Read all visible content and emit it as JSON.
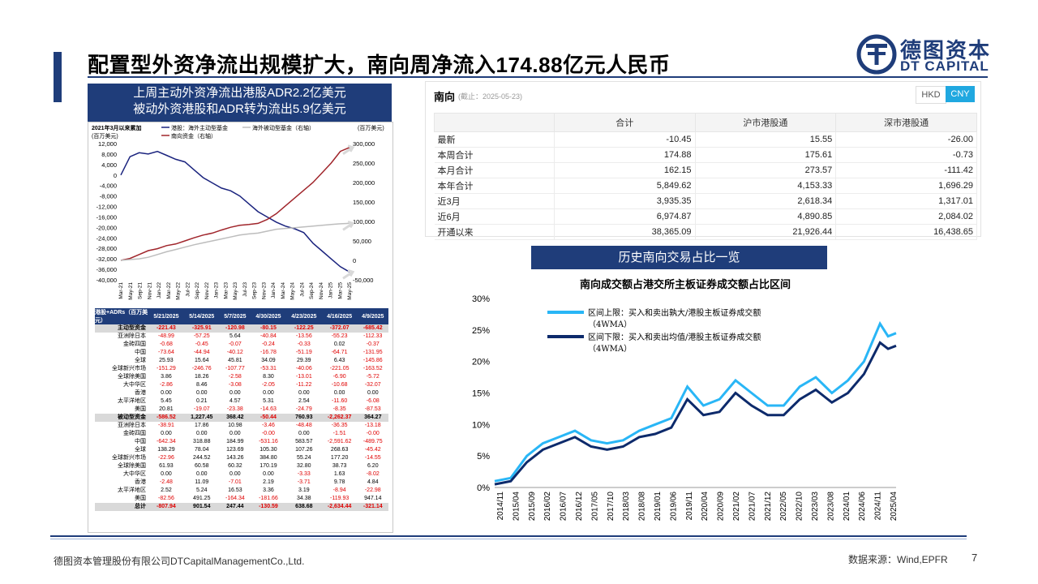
{
  "header": {
    "title": "配置型外资净流出规模扩大，南向周净流入174.88亿元人民币",
    "logo_cn": "德图资本",
    "logo_en": "DT CAPITAL"
  },
  "left_banner": {
    "line1": "上周主动外资净流出港股ADR2.2亿美元",
    "line2": "被动外资港股和ADR转为流出5.9亿美元"
  },
  "flow_chart": {
    "chart_data": {
      "type": "line",
      "title": "2021年3月以来累加",
      "left_unit": "(百万美元)",
      "right_unit": "(百万美元)",
      "y_left_ticks": [
        "12,000",
        "8,000",
        "4,000",
        "0",
        "-4,000",
        "-8,000",
        "-12,000",
        "-16,000",
        "-20,000",
        "-24,000",
        "-28,000",
        "-32,000",
        "-36,000",
        "-40,000"
      ],
      "y_right_ticks": [
        "300,000",
        "250,000",
        "200,000",
        "150,000",
        "100,000",
        "50,000",
        "0",
        "-50,000"
      ],
      "ylim_left": [
        -40000,
        12000
      ],
      "ylim_right": [
        -50000,
        300000
      ],
      "x_ticks": [
        "Mar-21",
        "May-21",
        "Sep-21",
        "Nov-21",
        "Jan-22",
        "Mar-22",
        "May-22",
        "Jul-22",
        "Sep-22",
        "Nov-22",
        "Jan-23",
        "Mar-23",
        "May-23",
        "Jul-23",
        "Sep-23",
        "Nov-23",
        "Jan-24",
        "Mar-24",
        "May-24",
        "Jul-24",
        "Sep-24",
        "Nov-24",
        "Jan-25",
        "Mar-25",
        "May-25"
      ],
      "series": [
        {
          "name": "港股：海外主动型基金",
          "color": "#1a237e",
          "axis": "left",
          "x": [
            0,
            4,
            8,
            12,
            16,
            20,
            24,
            28,
            32,
            36,
            40,
            44,
            48,
            52,
            56,
            60,
            64,
            68,
            72,
            76,
            80,
            84,
            88,
            92,
            96,
            100
          ],
          "values": [
            0,
            7000,
            8500,
            8000,
            9000,
            7500,
            6000,
            5000,
            2000,
            -1000,
            -3000,
            -5000,
            -6000,
            -8000,
            -11000,
            -14000,
            -16000,
            -18000,
            -19500,
            -20500,
            -22000,
            -26000,
            -29000,
            -32000,
            -35000,
            -37000
          ]
        },
        {
          "name": "南向资金（右轴）",
          "color": "#a0252b",
          "axis": "right",
          "x": [
            0,
            4,
            8,
            12,
            16,
            20,
            24,
            28,
            32,
            36,
            40,
            44,
            48,
            52,
            56,
            60,
            64,
            68,
            72,
            76,
            80,
            84,
            88,
            92,
            96,
            100
          ],
          "values": [
            0,
            5000,
            15000,
            25000,
            30000,
            38000,
            42000,
            50000,
            58000,
            65000,
            70000,
            78000,
            85000,
            90000,
            92000,
            95000,
            105000,
            120000,
            140000,
            160000,
            180000,
            200000,
            225000,
            250000,
            280000,
            290000
          ]
        },
        {
          "name": "海外被动型基金（右轴）",
          "color": "#bdbdbd",
          "axis": "right",
          "x": [
            0,
            4,
            8,
            12,
            16,
            20,
            24,
            28,
            32,
            36,
            40,
            44,
            48,
            52,
            56,
            60,
            64,
            68,
            72,
            76,
            80,
            84,
            88,
            92,
            96,
            100
          ],
          "values": [
            0,
            2000,
            4000,
            8000,
            15000,
            22000,
            28000,
            34000,
            40000,
            45000,
            50000,
            55000,
            60000,
            65000,
            68000,
            70000,
            75000,
            80000,
            82000,
            84000,
            86000,
            88000,
            90000,
            92000,
            94000,
            95000
          ]
        }
      ]
    }
  },
  "adr_table": {
    "headers": [
      "港股+ADRs（百万美元）",
      "5/21/2025",
      "5/14/2025",
      "5/7/2025",
      "4/30/2025",
      "4/23/2025",
      "4/16/2025",
      "4/9/2025"
    ],
    "rows": [
      {
        "label": "主动型资金",
        "values": [
          "-221.43",
          "-325.91",
          "-120.98",
          "-80.15",
          "-122.25",
          "-372.07",
          "-685.42"
        ],
        "hl": true
      },
      {
        "label": "亚洲除日本",
        "values": [
          "-48.99",
          "-57.25",
          "5.64",
          "-40.84",
          "-13.56",
          "-55.23",
          "-112.33"
        ]
      },
      {
        "label": "金砖四国",
        "values": [
          "-0.68",
          "-0.45",
          "-0.07",
          "-0.24",
          "-0.33",
          "0.02",
          "-0.37"
        ]
      },
      {
        "label": "中国",
        "values": [
          "-73.64",
          "-44.94",
          "-40.12",
          "-16.78",
          "-51.19",
          "-64.71",
          "-131.95"
        ]
      },
      {
        "label": "全球",
        "values": [
          "25.93",
          "15.64",
          "45.81",
          "34.09",
          "29.39",
          "6.43",
          "-145.86"
        ]
      },
      {
        "label": "全球新兴市场",
        "values": [
          "-151.29",
          "-246.76",
          "-107.77",
          "-53.31",
          "-40.06",
          "-221.05",
          "-163.52"
        ]
      },
      {
        "label": "全球除美国",
        "values": [
          "3.86",
          "18.26",
          "-2.58",
          "8.30",
          "-13.01",
          "-6.90",
          "-5.72"
        ]
      },
      {
        "label": "大中华区",
        "values": [
          "-2.86",
          "8.46",
          "-3.08",
          "-2.05",
          "-11.22",
          "-10.68",
          "-32.07"
        ]
      },
      {
        "label": "香港",
        "values": [
          "0.00",
          "0.00",
          "0.00",
          "0.00",
          "0.00",
          "0.00",
          "0.00"
        ]
      },
      {
        "label": "太平洋地区",
        "values": [
          "5.45",
          "0.21",
          "4.57",
          "5.31",
          "2.54",
          "-11.60",
          "-6.08"
        ]
      },
      {
        "label": "美国",
        "values": [
          "20.81",
          "-19.07",
          "-23.38",
          "-14.63",
          "-24.79",
          "-8.35",
          "-87.53"
        ]
      },
      {
        "label": "被动型资金",
        "values": [
          "-586.52",
          "1,227.45",
          "368.42",
          "-50.44",
          "760.93",
          "-2,262.37",
          "364.27"
        ],
        "hl": true
      },
      {
        "label": "亚洲除日本",
        "values": [
          "-38.91",
          "17.86",
          "10.98",
          "-3.46",
          "-48.48",
          "-36.35",
          "-13.18"
        ]
      },
      {
        "label": "金砖四国",
        "values": [
          "0.00",
          "0.00",
          "0.00",
          "-0.00",
          "0.00",
          "-1.51",
          "-0.00"
        ]
      },
      {
        "label": "中国",
        "values": [
          "-642.34",
          "318.88",
          "184.99",
          "-531.16",
          "583.57",
          "-2,591.62",
          "-489.75"
        ]
      },
      {
        "label": "全球",
        "values": [
          "138.29",
          "78.04",
          "123.69",
          "105.30",
          "107.26",
          "268.63",
          "-45.42"
        ]
      },
      {
        "label": "全球新兴市场",
        "values": [
          "-22.96",
          "244.52",
          "143.26",
          "384.80",
          "55.24",
          "177.20",
          "-14.55"
        ]
      },
      {
        "label": "全球除美国",
        "values": [
          "61.93",
          "60.58",
          "60.32",
          "170.19",
          "32.80",
          "38.73",
          "6.20"
        ]
      },
      {
        "label": "大中华区",
        "values": [
          "0.00",
          "0.00",
          "0.00",
          "0.00",
          "-3.33",
          "1.63",
          "-8.02"
        ]
      },
      {
        "label": "香港",
        "values": [
          "-2.48",
          "11.09",
          "-7.01",
          "2.19",
          "-3.71",
          "9.78",
          "4.84"
        ]
      },
      {
        "label": "太平洋地区",
        "values": [
          "2.52",
          "5.24",
          "16.53",
          "3.36",
          "3.19",
          "-8.94",
          "-22.98"
        ]
      },
      {
        "label": "美国",
        "values": [
          "-82.56",
          "491.25",
          "-164.34",
          "-181.66",
          "34.38",
          "-119.93",
          "947.14"
        ]
      },
      {
        "label": "总计",
        "values": [
          "-807.94",
          "901.54",
          "247.44",
          "-130.59",
          "638.68",
          "-2,634.44",
          "-321.14"
        ],
        "hl": true
      }
    ]
  },
  "southbound": {
    "title": "南向",
    "date": "(截止：2025-05-23)",
    "currency_options": [
      "HKD",
      "CNY"
    ],
    "selected_currency": "CNY",
    "columns": [
      "",
      "合计",
      "沪市港股通",
      "深市港股通"
    ],
    "rows": [
      {
        "label": "最新",
        "values": [
          "-10.45",
          "15.55",
          "-26.00"
        ]
      },
      {
        "label": "本周合计",
        "values": [
          "174.88",
          "175.61",
          "-0.73"
        ]
      },
      {
        "label": "本月合计",
        "values": [
          "162.15",
          "273.57",
          "-111.42"
        ]
      },
      {
        "label": "本年合计",
        "values": [
          "5,849.62",
          "4,153.33",
          "1,696.29"
        ]
      },
      {
        "label": "近3月",
        "values": [
          "3,935.35",
          "2,618.34",
          "1,317.01"
        ]
      },
      {
        "label": "近6月",
        "values": [
          "6,974.87",
          "4,890.85",
          "2,084.02"
        ]
      },
      {
        "label": "开通以来",
        "values": [
          "38,365.09",
          "21,926.44",
          "16,438.65"
        ]
      }
    ]
  },
  "history_banner": "历史南向交易占比一览",
  "share_chart": {
    "chart_data": {
      "type": "line",
      "title": "南向成交额占港交所主板证券成交额占比区间",
      "ylim": [
        0,
        30
      ],
      "y_ticks": [
        "30%",
        "25%",
        "20%",
        "15%",
        "10%",
        "5%",
        "0%"
      ],
      "x_ticks": [
        "2014/11",
        "2015/04",
        "2015/09",
        "2016/02",
        "2016/07",
        "2016/12",
        "2017/05",
        "2017/10",
        "2018/03",
        "2018/08",
        "2019/01",
        "2019/06",
        "2019/11",
        "2020/04",
        "2020/09",
        "2021/02",
        "2021/07",
        "2021/12",
        "2022/05",
        "2022/10",
        "2023/03",
        "2023/08",
        "2024/01",
        "2024/06",
        "2024/11",
        "2025/04"
      ],
      "series": [
        {
          "name": "区间上限：买入和卖出孰大/港股主板证券成交额（4WMA）",
          "color": "#29b6f6",
          "x": [
            0,
            2,
            4,
            6,
            8,
            10,
            12,
            14,
            16,
            18,
            20,
            22,
            24,
            26,
            28,
            30,
            32,
            34,
            36,
            38,
            40,
            42,
            44,
            46,
            48,
            49,
            50
          ],
          "values": [
            1,
            1.5,
            5,
            7,
            8,
            9,
            7.5,
            7,
            7.5,
            9,
            10,
            11,
            16,
            13,
            14,
            17,
            15,
            13,
            13,
            16,
            17.5,
            15,
            17,
            20,
            26,
            24,
            24.5
          ]
        },
        {
          "name": "区间下限：买入和卖出均值/港股主板证券成交额（4WMA）",
          "color": "#0d2a6b",
          "x": [
            0,
            2,
            4,
            6,
            8,
            10,
            12,
            14,
            16,
            18,
            20,
            22,
            24,
            26,
            28,
            30,
            32,
            34,
            36,
            38,
            40,
            42,
            44,
            46,
            48,
            49,
            50
          ],
          "values": [
            0.5,
            1,
            4,
            6,
            7,
            8,
            6.5,
            6,
            6.5,
            8,
            8.5,
            9.5,
            14,
            11.5,
            12,
            15,
            13,
            11.5,
            11.5,
            14,
            15.5,
            13.5,
            15,
            18,
            23,
            22,
            22.5
          ]
        }
      ]
    }
  },
  "footer": {
    "company": "德图资本管理股份有限公司DTCapitalManagementCo.,Ltd.",
    "source": "数据来源：Wind,EPFR",
    "page": "7"
  }
}
